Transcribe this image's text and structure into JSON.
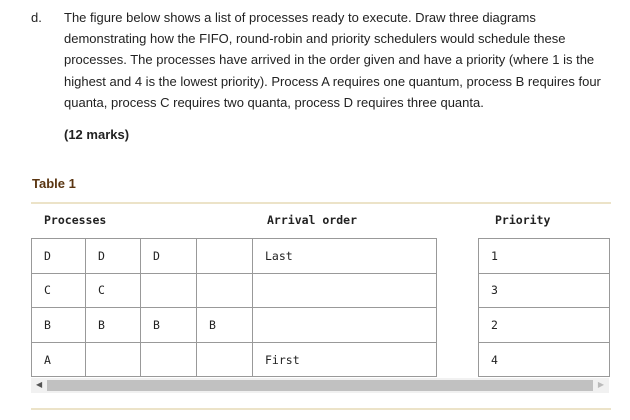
{
  "question": {
    "label": "d.",
    "text": "The figure below shows a list of processes ready to execute. Draw three diagrams demonstrating how the FIFO, round-robin and priority schedulers would schedule these processes. The processes have arrived in the order given and have a priority (where 1 is the highest and 4 is the lowest priority). Process A requires one quantum, process B requires four quanta, process C requires two quanta, process D requires three quanta.",
    "marks": "(12 marks)"
  },
  "table": {
    "caption": "Table 1",
    "headers": {
      "processes": "Processes",
      "arrival": "Arrival order",
      "priority": "Priority"
    },
    "rows": [
      {
        "cells": [
          "D",
          "D",
          "D",
          ""
        ],
        "arrival": "Last",
        "priority": "1"
      },
      {
        "cells": [
          "C",
          "C",
          "",
          ""
        ],
        "arrival": "",
        "priority": "3"
      },
      {
        "cells": [
          "B",
          "B",
          "B",
          "B"
        ],
        "arrival": "",
        "priority": "2"
      },
      {
        "cells": [
          "A",
          "",
          "",
          ""
        ],
        "arrival": "First",
        "priority": "4"
      }
    ]
  },
  "colors": {
    "rule": "#ece3c8",
    "caption": "#5a3511"
  }
}
